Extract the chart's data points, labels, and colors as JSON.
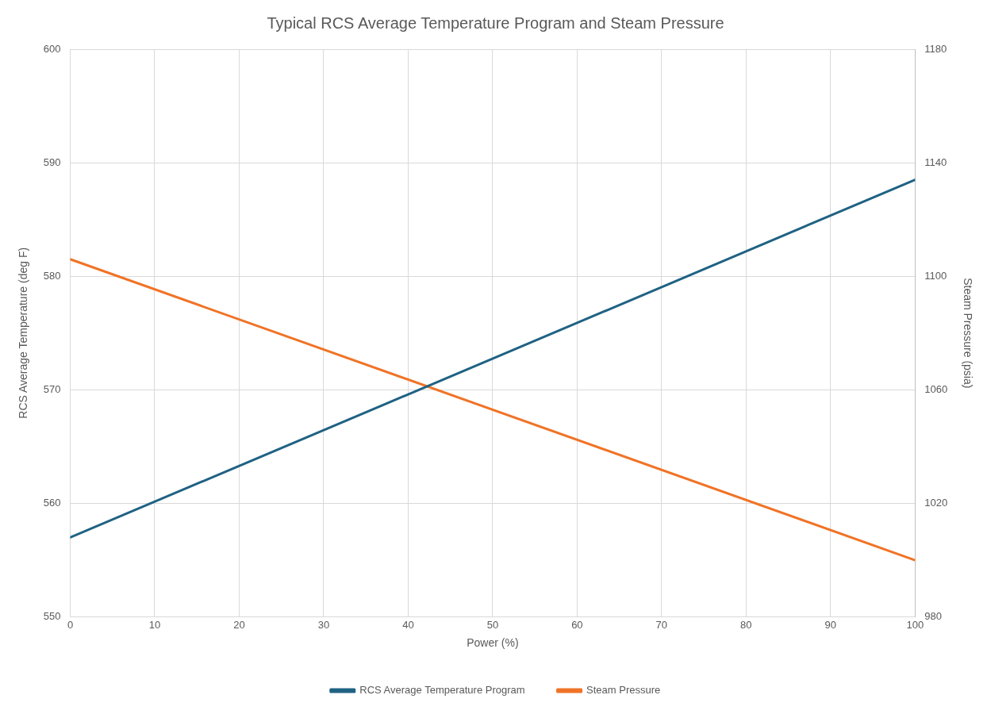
{
  "chart_data": {
    "type": "line",
    "title": "Typical RCS Average Temperature Program and Steam Pressure",
    "xlabel": "Power (%)",
    "ylabel": "RCS Average Temperature (deg F)",
    "y2label": "Steam Pressure (psia)",
    "x": [
      0,
      100
    ],
    "series": [
      {
        "name": "RCS Average Temperature Program",
        "color": "#1f6283",
        "values": [
          557,
          588.5
        ]
      },
      {
        "name": "Steam Pressure",
        "color": "#f07326",
        "values": [
          1106,
          1000
        ],
        "axis": "y2"
      }
    ],
    "xlim": [
      0,
      100
    ],
    "xticks": [
      0,
      10,
      20,
      30,
      40,
      50,
      60,
      70,
      80,
      90,
      100
    ],
    "ylim": [
      550,
      600
    ],
    "yticks": [
      550,
      560,
      570,
      580,
      590,
      600
    ],
    "y2lim": [
      980,
      1180
    ],
    "y2ticks": [
      980,
      1020,
      1060,
      1100,
      1140,
      1180
    ],
    "grid": true,
    "legend": "bottom",
    "marker": "none",
    "line_style": "solid"
  }
}
